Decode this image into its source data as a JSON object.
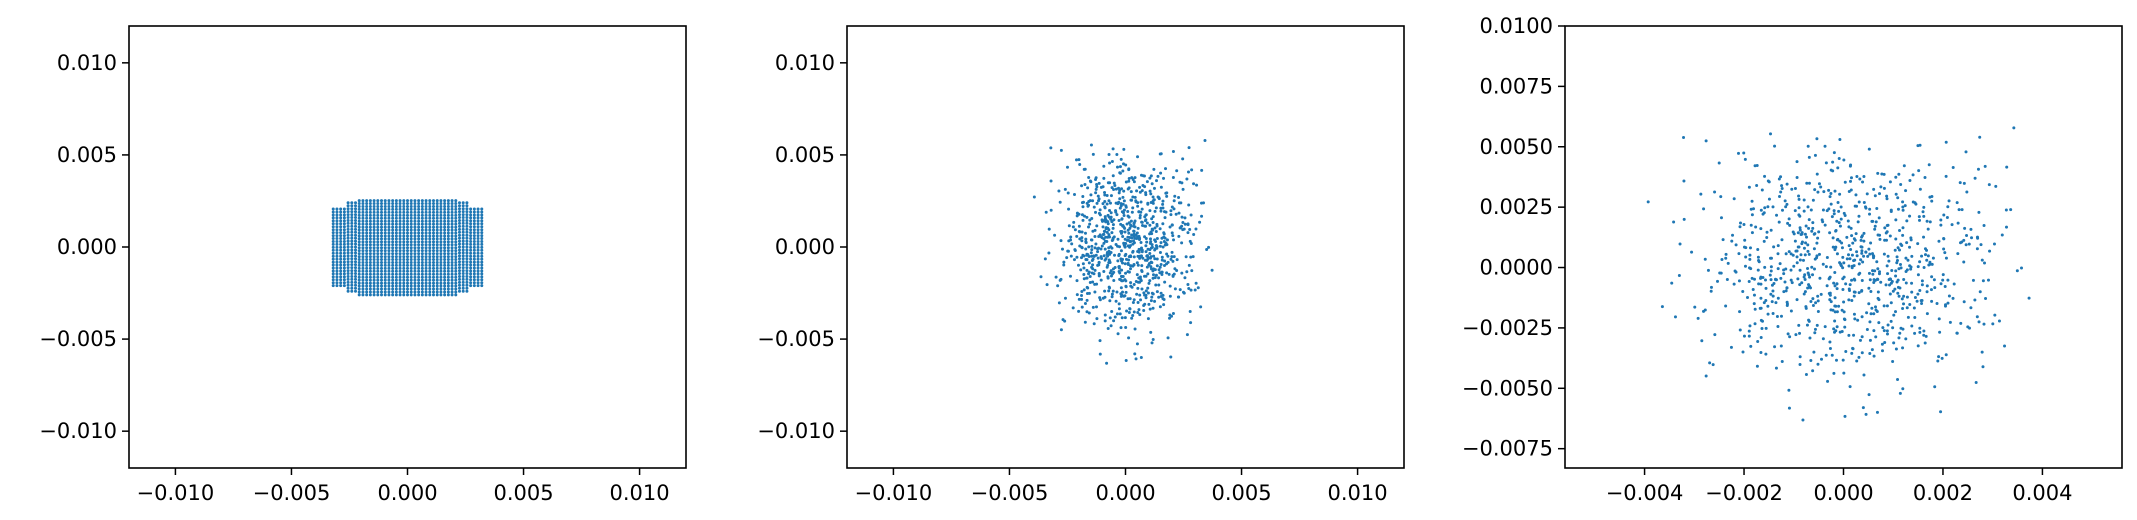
{
  "chart_data": [
    {
      "type": "scatter",
      "pattern": "grid",
      "color": "#1f77b4",
      "xlim": [
        -0.012,
        0.012
      ],
      "ylim": [
        -0.012,
        0.012
      ],
      "x_ticks": [
        -0.01,
        -0.005,
        0.0,
        0.005,
        0.01
      ],
      "x_tick_labels": [
        "−0.010",
        "−0.005",
        "0.000",
        "0.005",
        "0.010"
      ],
      "y_ticks": [
        -0.01,
        -0.005,
        0.0,
        0.005,
        0.01
      ],
      "y_tick_labels": [
        "−0.010",
        "−0.005",
        "0.000",
        "0.005",
        "0.010"
      ],
      "grid_region": {
        "x_range": [
          -0.0032,
          0.0032
        ],
        "y_range": [
          -0.0026,
          0.0026
        ],
        "x_step": 0.00016,
        "y_step": 0.00016
      },
      "grid": false,
      "title": "",
      "xlabel": "",
      "ylabel": ""
    },
    {
      "type": "scatter",
      "pattern": "random",
      "seed": 7,
      "n_points": 900,
      "color": "#1f77b4",
      "xlim": [
        -0.012,
        0.012
      ],
      "ylim": [
        -0.012,
        0.012
      ],
      "x_ticks": [
        -0.01,
        -0.005,
        0.0,
        0.005,
        0.01
      ],
      "x_tick_labels": [
        "−0.010",
        "−0.005",
        "0.000",
        "0.005",
        "0.010"
      ],
      "y_ticks": [
        -0.01,
        -0.005,
        0.0,
        0.005,
        0.01
      ],
      "y_tick_labels": [
        "−0.010",
        "−0.005",
        "0.000",
        "0.005",
        "0.010"
      ],
      "x_extent": [
        -0.0042,
        0.0045
      ],
      "y_extent": [
        -0.0078,
        0.0082
      ],
      "grid": false,
      "title": "",
      "xlabel": "",
      "ylabel": ""
    },
    {
      "type": "scatter",
      "pattern": "random",
      "seed": 7,
      "n_points": 900,
      "color": "#1f77b4",
      "xlim": [
        -0.0056,
        0.0056
      ],
      "ylim": [
        -0.0083,
        0.01
      ],
      "x_ticks": [
        -0.004,
        -0.002,
        0.0,
        0.002,
        0.004
      ],
      "x_tick_labels": [
        "−0.004",
        "−0.002",
        "0.000",
        "0.002",
        "0.004"
      ],
      "y_ticks": [
        -0.0075,
        -0.005,
        -0.0025,
        0.0,
        0.0025,
        0.005,
        0.0075,
        0.01
      ],
      "y_tick_labels": [
        "−0.0075",
        "−0.0050",
        "−0.0025",
        "0.0000",
        "0.0025",
        "0.0050",
        "0.0075",
        "0.0100"
      ],
      "x_extent": [
        -0.0042,
        0.0045
      ],
      "y_extent": [
        -0.0078,
        0.0082
      ],
      "grid": false,
      "title": "",
      "xlabel": "",
      "ylabel": ""
    }
  ]
}
